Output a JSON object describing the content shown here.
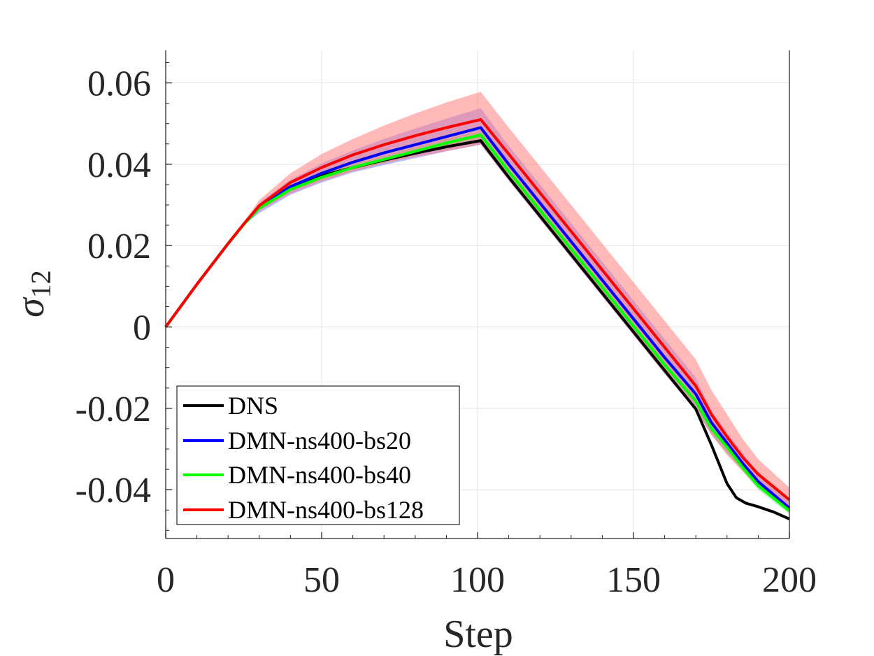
{
  "chart_data": {
    "type": "line",
    "title": "",
    "xlabel": "Step",
    "ylabel_symbol": "σ",
    "ylabel_subscript": "12",
    "xlim": [
      0,
      200
    ],
    "ylim": [
      -0.052,
      0.068
    ],
    "xticks": [
      0,
      50,
      100,
      150,
      200
    ],
    "xtick_labels": [
      "0",
      "50",
      "100",
      "150",
      "200"
    ],
    "yticks": [
      0.06,
      0.04,
      0.02,
      0,
      -0.02,
      -0.04
    ],
    "ytick_labels": [
      "0.06",
      "0.04",
      "0.02",
      "0",
      "-0.02",
      "-0.04"
    ],
    "grid": true,
    "legend_position": "bottom-left",
    "series": [
      {
        "name": "DMN-ns400-bs20",
        "color": "#0000ff",
        "band_color": "#8080ff",
        "x": [
          0,
          10,
          20,
          25,
          30,
          40,
          50,
          60,
          70,
          80,
          90,
          101,
          110,
          120,
          130,
          140,
          150,
          160,
          170,
          175,
          180,
          185,
          190,
          200
        ],
        "y": [
          0,
          0.0105,
          0.0205,
          0.0252,
          0.0295,
          0.0345,
          0.0378,
          0.0405,
          0.0428,
          0.0448,
          0.0468,
          0.049,
          0.04,
          0.0305,
          0.021,
          0.0115,
          0.002,
          -0.0075,
          -0.0165,
          -0.0235,
          -0.0285,
          -0.0335,
          -0.038,
          -0.0445
        ],
        "lower": [
          0,
          0.0105,
          0.0205,
          0.025,
          0.028,
          0.0325,
          0.0355,
          0.038,
          0.0398,
          0.0415,
          0.0432,
          0.0448,
          0.036,
          0.0265,
          0.017,
          0.0075,
          -0.002,
          -0.0115,
          -0.0205,
          -0.0265,
          -0.031,
          -0.035,
          -0.039,
          -0.0455
        ],
        "upper": [
          0,
          0.0105,
          0.0205,
          0.0256,
          0.0305,
          0.0362,
          0.0402,
          0.0434,
          0.0462,
          0.0488,
          0.0512,
          0.0538,
          0.0445,
          0.035,
          0.0255,
          0.016,
          0.0065,
          -0.003,
          -0.0125,
          -0.0205,
          -0.026,
          -0.031,
          -0.036,
          -0.0425
        ]
      },
      {
        "name": "DMN-ns400-bs40",
        "color": "#00ff00",
        "band_color": "#80e080",
        "x": [
          0,
          10,
          20,
          25,
          30,
          40,
          50,
          60,
          70,
          80,
          90,
          101,
          110,
          120,
          130,
          140,
          150,
          160,
          170,
          175,
          180,
          185,
          190,
          200
        ],
        "y": [
          0,
          0.0105,
          0.0205,
          0.0252,
          0.0292,
          0.0338,
          0.0368,
          0.0392,
          0.0412,
          0.0432,
          0.0452,
          0.0472,
          0.0382,
          0.0287,
          0.0192,
          0.0097,
          0.0002,
          -0.0093,
          -0.0183,
          -0.025,
          -0.0295,
          -0.0345,
          -0.039,
          -0.0452
        ],
        "lower": [
          0,
          0.0105,
          0.0205,
          0.0251,
          0.0288,
          0.0332,
          0.0361,
          0.0384,
          0.0403,
          0.0423,
          0.0442,
          0.0462,
          0.0372,
          0.0277,
          0.0182,
          0.0087,
          -0.0008,
          -0.0103,
          -0.0193,
          -0.026,
          -0.031,
          -0.0355,
          -0.04,
          -0.046
        ],
        "upper": [
          0,
          0.0105,
          0.0205,
          0.0253,
          0.0296,
          0.0344,
          0.0375,
          0.04,
          0.0421,
          0.0441,
          0.0462,
          0.0482,
          0.0392,
          0.0297,
          0.0202,
          0.0107,
          0.0012,
          -0.0083,
          -0.0173,
          -0.024,
          -0.0285,
          -0.0335,
          -0.038,
          -0.0444
        ]
      },
      {
        "name": "DMN-ns400-bs128",
        "color": "#ff0000",
        "band_color": "#ff8080",
        "x": [
          0,
          10,
          20,
          25,
          30,
          40,
          50,
          60,
          70,
          80,
          90,
          101,
          110,
          120,
          130,
          140,
          150,
          160,
          170,
          175,
          180,
          185,
          190,
          200
        ],
        "y": [
          0,
          0.0105,
          0.0205,
          0.0253,
          0.0298,
          0.0355,
          0.0392,
          0.0423,
          0.0448,
          0.047,
          0.049,
          0.051,
          0.0425,
          0.033,
          0.0235,
          0.014,
          0.0045,
          -0.005,
          -0.0145,
          -0.0215,
          -0.027,
          -0.032,
          -0.0362,
          -0.0425
        ],
        "lower": [
          0,
          0.0105,
          0.0205,
          0.025,
          0.0285,
          0.0328,
          0.0358,
          0.0382,
          0.0402,
          0.0418,
          0.0432,
          0.0448,
          0.036,
          0.0265,
          0.017,
          0.0075,
          -0.002,
          -0.0115,
          -0.0205,
          -0.0265,
          -0.0315,
          -0.0355,
          -0.0395,
          -0.0455
        ],
        "upper": [
          0,
          0.0105,
          0.0205,
          0.0258,
          0.0312,
          0.0378,
          0.0425,
          0.0462,
          0.0495,
          0.0525,
          0.0552,
          0.0578,
          0.049,
          0.0395,
          0.03,
          0.0205,
          0.011,
          0.0015,
          -0.008,
          -0.0155,
          -0.0215,
          -0.0275,
          -0.0325,
          -0.0395
        ]
      },
      {
        "name": "DNS",
        "color": "#000000",
        "x": [
          0,
          10,
          20,
          25,
          30,
          40,
          50,
          60,
          70,
          80,
          90,
          101,
          110,
          120,
          130,
          140,
          150,
          160,
          170,
          175,
          180,
          183,
          186,
          190,
          195,
          200
        ],
        "y": [
          0,
          0.0105,
          0.0205,
          0.0252,
          0.0295,
          0.0345,
          0.0372,
          0.0392,
          0.041,
          0.0427,
          0.0443,
          0.0458,
          0.0368,
          0.0273,
          0.0178,
          0.0083,
          -0.0012,
          -0.0107,
          -0.0202,
          -0.029,
          -0.0385,
          -0.042,
          -0.0433,
          -0.0442,
          -0.0455,
          -0.0472
        ]
      }
    ],
    "legend": [
      "DNS",
      "DMN-ns400-bs20",
      "DMN-ns400-bs40",
      "DMN-ns400-bs128"
    ]
  }
}
